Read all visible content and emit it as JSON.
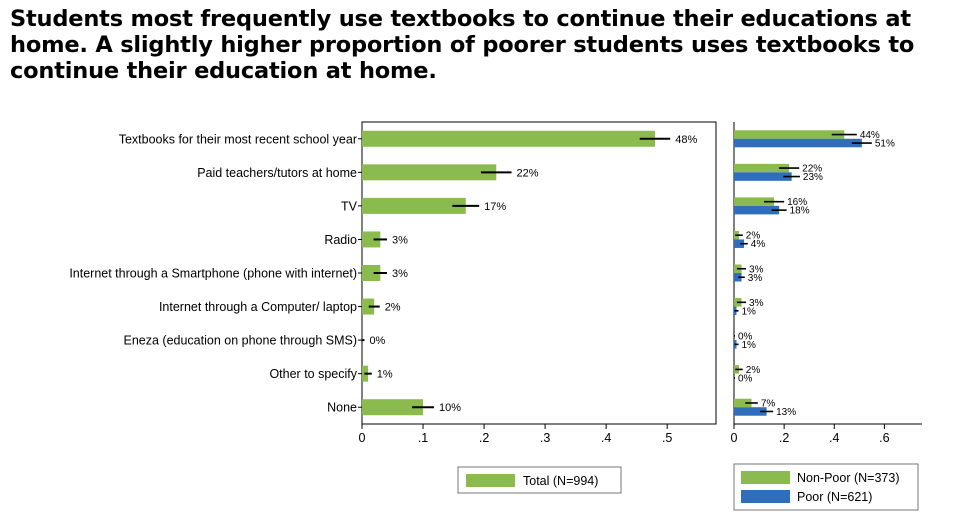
{
  "title": "Students most frequently use textbooks to continue their educations at home. A slightly higher proportion of poorer students uses textbooks to continue their education at home.",
  "colors": {
    "green": "#8bba4e",
    "blue": "#2f6ebc",
    "axis": "#000000"
  },
  "chart_data": [
    {
      "type": "bar",
      "orientation": "horizontal",
      "categories": [
        "Textbooks for their most recent school year",
        "Paid teachers/tutors at home",
        "TV",
        "Radio",
        "Internet through a Smartphone (phone with internet)",
        "Internet through a Computer/ laptop",
        "Eneza (education on phone through SMS)",
        "Other to specify",
        "None"
      ],
      "series": [
        {
          "name": "Total (N=994)",
          "values": [
            0.48,
            0.22,
            0.17,
            0.03,
            0.03,
            0.02,
            0.0,
            0.01,
            0.1
          ],
          "labels": [
            "48%",
            "22%",
            "17%",
            "3%",
            "3%",
            "2%",
            "0%",
            "1%",
            "10%"
          ],
          "ci": [
            [
              0.455,
              0.505
            ],
            [
              0.195,
              0.245
            ],
            [
              0.148,
              0.192
            ],
            [
              0.019,
              0.041
            ],
            [
              0.019,
              0.041
            ],
            [
              0.011,
              0.029
            ],
            [
              0.0,
              0.004
            ],
            [
              0.004,
              0.016
            ],
            [
              0.082,
              0.118
            ]
          ]
        }
      ],
      "xticks": [
        0,
        0.1,
        0.2,
        0.3,
        0.4,
        0.5
      ],
      "xtick_labels": [
        "0",
        ".1",
        ".2",
        ".3",
        ".4",
        ".5"
      ],
      "xlim": [
        0,
        0.58
      ],
      "legend": "bottom"
    },
    {
      "type": "bar",
      "orientation": "horizontal",
      "categories": [
        "Textbooks for their most recent school year",
        "Paid teachers/tutors at home",
        "TV",
        "Radio",
        "Internet through a Smartphone (phone with internet)",
        "Internet through a Computer/ laptop",
        "Eneza (education on phone through SMS)",
        "Other to specify",
        "None"
      ],
      "series": [
        {
          "name": "Non-Poor (N=373)",
          "values": [
            0.44,
            0.22,
            0.16,
            0.02,
            0.03,
            0.03,
            0.0,
            0.02,
            0.07
          ],
          "labels": [
            "44%",
            "22%",
            "16%",
            "2%",
            "3%",
            "3%",
            "0%",
            "2%",
            "7%"
          ],
          "ci": [
            [
              0.39,
              0.49
            ],
            [
              0.18,
              0.26
            ],
            [
              0.12,
              0.2
            ],
            [
              0.005,
              0.035
            ],
            [
              0.012,
              0.048
            ],
            [
              0.012,
              0.048
            ],
            [
              0.0,
              0.004
            ],
            [
              0.005,
              0.035
            ],
            [
              0.045,
              0.095
            ]
          ]
        },
        {
          "name": "Poor (N=621)",
          "values": [
            0.51,
            0.23,
            0.18,
            0.04,
            0.03,
            0.01,
            0.01,
            0.0,
            0.13
          ],
          "labels": [
            "51%",
            "23%",
            "18%",
            "4%",
            "3%",
            "1%",
            "1%",
            "0%",
            "13%"
          ],
          "ci": [
            [
              0.47,
              0.55
            ],
            [
              0.197,
              0.263
            ],
            [
              0.15,
              0.21
            ],
            [
              0.025,
              0.055
            ],
            [
              0.017,
              0.043
            ],
            [
              0.002,
              0.018
            ],
            [
              0.002,
              0.018
            ],
            [
              0.0,
              0.004
            ],
            [
              0.104,
              0.156
            ]
          ]
        }
      ],
      "xticks": [
        0,
        0.2,
        0.4,
        0.6
      ],
      "xtick_labels": [
        "0",
        ".2",
        ".4",
        ".6"
      ],
      "xlim": [
        0,
        0.75
      ],
      "legend": "bottom"
    }
  ]
}
